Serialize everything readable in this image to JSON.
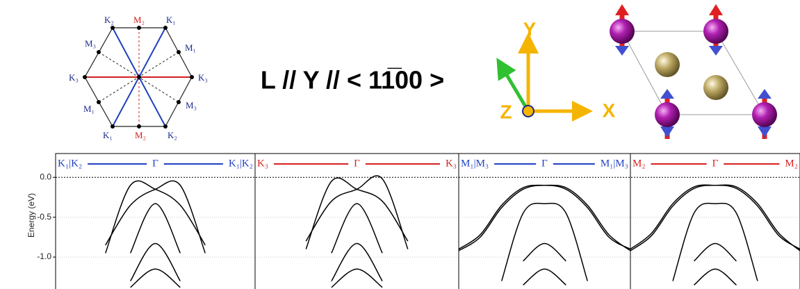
{
  "brillouin_zone": {
    "labels": [
      "K₂",
      "M₂",
      "K₁",
      "M₃",
      "M₁",
      "K₃",
      "K₃",
      "M₁",
      "M₃",
      "K₁",
      "M₂",
      "K₂"
    ]
  },
  "title": "L // Y // < 11̅00 >",
  "axes_diagram": {
    "labels": [
      "Y",
      "X",
      "Z"
    ]
  },
  "chart_data": [
    {
      "type": "line",
      "header": {
        "left": "K₁|K₂",
        "center": "Γ",
        "right": "K₁|K₂",
        "color": "#1f3fc4"
      },
      "ylabel": "Energy (eV)",
      "ylim": [
        -1.4,
        0.3
      ],
      "xlim": [
        -1,
        1
      ],
      "color": "#000000",
      "yticks": [
        {
          "value": 0,
          "label": "0.0"
        },
        {
          "value": -0.5,
          "label": "-0.5"
        },
        {
          "value": -1,
          "label": "-1.0"
        }
      ],
      "x": [
        -1,
        -0.75,
        -0.5,
        -0.25,
        0,
        0.25,
        0.5,
        0.75,
        1
      ],
      "series": [
        {
          "values": [
            null,
            null,
            -0.95,
            -0.1,
            -0.15,
            -0.35,
            -0.85,
            null,
            null
          ]
        },
        {
          "values": [
            null,
            null,
            -0.85,
            -0.35,
            -0.15,
            -0.1,
            -0.95,
            null,
            null
          ]
        },
        {
          "values": [
            null,
            null,
            null,
            -0.95,
            -0.33,
            -0.95,
            null,
            null,
            null
          ]
        },
        {
          "values": [
            null,
            null,
            null,
            -1.3,
            -0.83,
            -1.3,
            null,
            null,
            null
          ]
        },
        {
          "values": [
            null,
            null,
            null,
            -1.38,
            -1.15,
            -1.38,
            null,
            null,
            null
          ]
        }
      ]
    },
    {
      "type": "line",
      "header": {
        "left": "K₃",
        "center": "Γ",
        "right": "K₃",
        "color": "#d62020"
      },
      "ylim": [
        -1.4,
        0.3
      ],
      "xlim": [
        -1,
        1
      ],
      "color": "#000000",
      "x": [
        -1,
        -0.75,
        -0.5,
        -0.25,
        0,
        0.25,
        0.5,
        0.75,
        1
      ],
      "series": [
        {
          "values": [
            null,
            null,
            -0.9,
            -0.05,
            -0.15,
            -0.3,
            -0.8,
            null,
            null
          ]
        },
        {
          "values": [
            null,
            null,
            -0.8,
            -0.3,
            -0.15,
            -0.02,
            -0.9,
            null,
            null
          ]
        },
        {
          "values": [
            null,
            null,
            null,
            -0.95,
            -0.33,
            -0.95,
            null,
            null,
            null
          ]
        },
        {
          "values": [
            null,
            null,
            null,
            -1.3,
            -0.83,
            -1.3,
            null,
            null,
            null
          ]
        },
        {
          "values": [
            null,
            null,
            null,
            -1.38,
            -1.15,
            -1.38,
            null,
            null,
            null
          ]
        }
      ]
    },
    {
      "type": "line",
      "header": {
        "left": "M₁|M₃",
        "center": "Γ",
        "right": "M₁|M₃",
        "color": "#1f3fc4"
      },
      "ylim": [
        -1.4,
        0.3
      ],
      "xlim": [
        -1,
        1
      ],
      "color": "#000000",
      "x": [
        -1,
        -0.75,
        -0.5,
        -0.25,
        0,
        0.25,
        0.5,
        0.75,
        1
      ],
      "series": [
        {
          "values": [
            -0.9,
            -0.72,
            -0.35,
            -0.13,
            -0.1,
            -0.13,
            -0.35,
            -0.72,
            -0.92
          ]
        },
        {
          "values": [
            -0.92,
            -0.75,
            -0.38,
            -0.15,
            -0.1,
            -0.15,
            -0.38,
            -0.75,
            -0.9
          ]
        },
        {
          "values": [
            null,
            null,
            -1.3,
            -0.45,
            -0.33,
            -0.45,
            -1.3,
            null,
            null
          ]
        },
        {
          "values": [
            null,
            null,
            null,
            -1.05,
            -0.83,
            -1.05,
            null,
            null,
            null
          ]
        },
        {
          "values": [
            null,
            null,
            null,
            -1.35,
            -1.15,
            -1.35,
            null,
            null,
            null
          ]
        }
      ]
    },
    {
      "type": "line",
      "header": {
        "left": "M₂",
        "center": "Γ",
        "right": "M₂",
        "color": "#d62020"
      },
      "ylim": [
        -1.4,
        0.3
      ],
      "xlim": [
        -1,
        1
      ],
      "color": "#000000",
      "x": [
        -1,
        -0.75,
        -0.5,
        -0.25,
        0,
        0.25,
        0.5,
        0.75,
        1
      ],
      "series": [
        {
          "values": [
            -0.9,
            -0.7,
            -0.33,
            -0.12,
            -0.1,
            -0.12,
            -0.33,
            -0.7,
            -0.92
          ]
        },
        {
          "values": [
            -0.92,
            -0.73,
            -0.36,
            -0.14,
            -0.1,
            -0.14,
            -0.36,
            -0.73,
            -0.9
          ]
        },
        {
          "values": [
            null,
            null,
            -1.3,
            -0.45,
            -0.33,
            -0.45,
            -1.3,
            null,
            null
          ]
        },
        {
          "values": [
            null,
            null,
            null,
            -1.05,
            -0.83,
            -1.05,
            null,
            null,
            null
          ]
        },
        {
          "values": [
            null,
            null,
            null,
            -1.35,
            -1.15,
            -1.35,
            null,
            null,
            null
          ]
        }
      ]
    }
  ]
}
